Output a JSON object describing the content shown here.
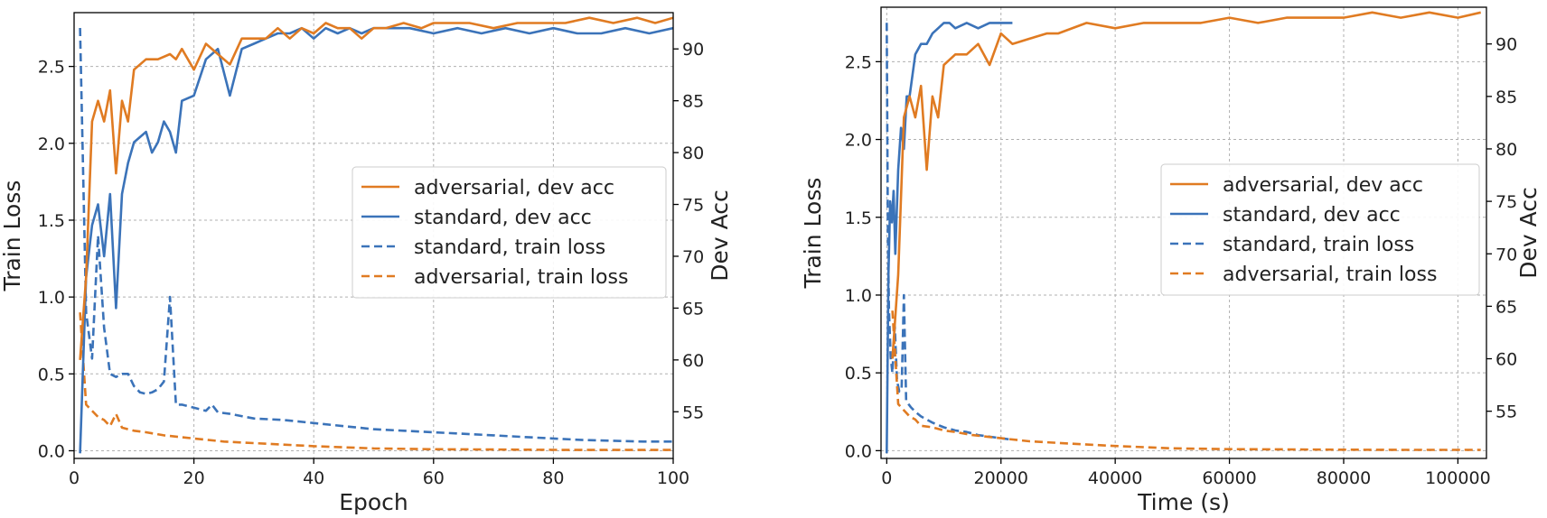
{
  "colors": {
    "adversarial": "#e07b22",
    "standard": "#3b73b9"
  },
  "chart_data": [
    {
      "type": "line",
      "xlabel": "Epoch",
      "ylabel_left": "Train Loss",
      "ylabel_right": "Dev Acc",
      "xlim": [
        0,
        100
      ],
      "ylim_left": [
        -0.05,
        2.85
      ],
      "ylim_right": [
        50.5,
        93.5
      ],
      "xticks": [
        "0",
        "20",
        "40",
        "60",
        "80",
        "100"
      ],
      "yticks_left": [
        "0.0",
        "0.5",
        "1.0",
        "1.5",
        "2.0",
        "2.5"
      ],
      "yticks_right": [
        "55",
        "60",
        "65",
        "70",
        "75",
        "80",
        "85",
        "90"
      ],
      "grid": true,
      "legend_position": "center-right",
      "legend": [
        "adversarial, dev acc",
        "standard, dev acc",
        "standard, train loss",
        "adversarial, train loss"
      ],
      "series": [
        {
          "name": "adversarial, dev acc",
          "axis": "right",
          "style": "solid",
          "color": "adversarial",
          "x": [
            1,
            2,
            3,
            4,
            5,
            6,
            7,
            8,
            9,
            10,
            12,
            14,
            16,
            17,
            18,
            20,
            22,
            24,
            26,
            28,
            30,
            32,
            34,
            36,
            38,
            40,
            42,
            44,
            46,
            48,
            50,
            52,
            55,
            58,
            60,
            63,
            66,
            70,
            74,
            78,
            82,
            86,
            90,
            94,
            97,
            100
          ],
          "y": [
            60,
            68,
            83,
            85,
            83,
            86,
            78,
            85,
            83,
            88,
            89,
            89,
            89.5,
            89,
            90,
            88,
            90.5,
            89.5,
            88.5,
            91,
            91,
            91,
            92,
            91,
            92,
            91.5,
            92.5,
            92,
            92,
            91,
            92,
            92,
            92.5,
            92,
            92.5,
            92.5,
            92.5,
            92,
            92.5,
            92.5,
            92.5,
            93,
            92.5,
            93,
            92.5,
            93
          ]
        },
        {
          "name": "standard, dev acc",
          "axis": "right",
          "style": "solid",
          "color": "standard",
          "x": [
            1,
            2,
            3,
            4,
            5,
            6,
            7,
            8,
            9,
            10,
            12,
            13,
            14,
            15,
            16,
            17,
            18,
            20,
            22,
            24,
            26,
            28,
            30,
            32,
            34,
            36,
            38,
            40,
            42,
            44,
            46,
            48,
            50,
            53,
            56,
            60,
            64,
            68,
            72,
            76,
            80,
            84,
            88,
            92,
            96,
            100
          ],
          "y": [
            51,
            68,
            73,
            75,
            70,
            76,
            65,
            76,
            79,
            81,
            82,
            80,
            81,
            83,
            82,
            80,
            85,
            85.5,
            89,
            90,
            85.5,
            90,
            90.5,
            91,
            91.5,
            91.5,
            92,
            91,
            92,
            91.5,
            92,
            91.5,
            92,
            92,
            92,
            91.5,
            92,
            91.5,
            92,
            91.5,
            92,
            91.5,
            91.5,
            92,
            91.5,
            92
          ]
        },
        {
          "name": "standard, train loss",
          "axis": "left",
          "style": "dashed",
          "color": "standard",
          "x": [
            1,
            2,
            3,
            4,
            5,
            6,
            7,
            8,
            9,
            10,
            11,
            12,
            13,
            14,
            15,
            16,
            17,
            18,
            20,
            22,
            23,
            24,
            26,
            30,
            35,
            40,
            45,
            50,
            55,
            60,
            65,
            70,
            75,
            80,
            85,
            90,
            95,
            100
          ],
          "y": [
            2.75,
            0.9,
            0.6,
            1.4,
            0.8,
            0.5,
            0.48,
            0.5,
            0.5,
            0.42,
            0.38,
            0.37,
            0.38,
            0.4,
            0.45,
            1.0,
            0.3,
            0.3,
            0.28,
            0.26,
            0.3,
            0.25,
            0.24,
            0.21,
            0.2,
            0.18,
            0.16,
            0.14,
            0.13,
            0.12,
            0.11,
            0.1,
            0.09,
            0.08,
            0.07,
            0.065,
            0.06,
            0.06
          ]
        },
        {
          "name": "adversarial, train loss",
          "axis": "left",
          "style": "dashed",
          "color": "adversarial",
          "x": [
            1,
            2,
            3,
            4,
            5,
            6,
            7,
            8,
            10,
            12,
            15,
            20,
            25,
            30,
            40,
            50,
            60,
            70,
            80,
            90,
            100
          ],
          "y": [
            0.9,
            0.3,
            0.26,
            0.22,
            0.2,
            0.16,
            0.24,
            0.15,
            0.13,
            0.12,
            0.1,
            0.08,
            0.06,
            0.05,
            0.03,
            0.015,
            0.01,
            0.008,
            0.006,
            0.005,
            0.005
          ]
        }
      ]
    },
    {
      "type": "line",
      "xlabel": "Time (s)",
      "ylabel_left": "Train Loss",
      "ylabel_right": "Dev Acc",
      "xlim": [
        -1000,
        105000
      ],
      "ylim_left": [
        -0.05,
        2.85
      ],
      "ylim_right": [
        50.5,
        93.5
      ],
      "xticks": [
        "0",
        "20000",
        "40000",
        "60000",
        "80000",
        "100000"
      ],
      "yticks_left": [
        "0.0",
        "0.5",
        "1.0",
        "1.5",
        "2.0",
        "2.5"
      ],
      "yticks_right": [
        "55",
        "60",
        "65",
        "70",
        "75",
        "80",
        "85",
        "90"
      ],
      "grid": true,
      "legend_position": "center-right",
      "legend": [
        "adversarial, dev acc",
        "standard, dev acc",
        "standard, train loss",
        "adversarial, train loss"
      ],
      "series": [
        {
          "name": "adversarial, dev acc",
          "axis": "right",
          "style": "solid",
          "color": "adversarial",
          "x": [
            1000,
            2000,
            3000,
            4000,
            5000,
            6000,
            7000,
            8000,
            9000,
            10000,
            12000,
            14000,
            16000,
            18000,
            20000,
            22000,
            25000,
            28000,
            30000,
            35000,
            40000,
            45000,
            50000,
            55000,
            60000,
            65000,
            70000,
            75000,
            80000,
            85000,
            90000,
            95000,
            100000,
            104000
          ],
          "y": [
            60,
            68,
            83,
            85,
            83,
            86,
            78,
            85,
            83,
            88,
            89,
            89,
            90,
            88,
            91,
            90,
            90.5,
            91,
            91,
            92,
            91.5,
            92,
            92,
            92,
            92.5,
            92,
            92.5,
            92.5,
            92.5,
            93,
            92.5,
            93,
            92.5,
            93
          ]
        },
        {
          "name": "standard, dev acc",
          "axis": "right",
          "style": "solid",
          "color": "standard",
          "x": [
            0,
            300,
            600,
            900,
            1200,
            1500,
            2000,
            2500,
            3000,
            3500,
            4000,
            5000,
            6000,
            7000,
            8000,
            9000,
            10000,
            11000,
            12000,
            14000,
            16000,
            18000,
            20000,
            22000
          ],
          "y": [
            51,
            68,
            75,
            73,
            76,
            70,
            78,
            82,
            80,
            85,
            85,
            89,
            90,
            90,
            91,
            91.5,
            92,
            92,
            91.5,
            92,
            91.5,
            92,
            92,
            92
          ]
        },
        {
          "name": "standard, train loss",
          "axis": "left",
          "style": "dashed",
          "color": "standard",
          "x": [
            0,
            200,
            400,
            700,
            1000,
            1400,
            1800,
            2200,
            2600,
            3000,
            3400,
            3800,
            4200,
            5000,
            6000,
            7000,
            8000,
            10000,
            12000,
            14000,
            16000,
            18000,
            20000,
            22000
          ],
          "y": [
            2.75,
            1.4,
            0.9,
            0.6,
            0.5,
            0.8,
            0.45,
            0.38,
            0.4,
            1.0,
            0.32,
            0.3,
            0.28,
            0.25,
            0.22,
            0.2,
            0.18,
            0.15,
            0.13,
            0.12,
            0.1,
            0.09,
            0.08,
            0.07
          ]
        },
        {
          "name": "adversarial, train loss",
          "axis": "left",
          "style": "dashed",
          "color": "adversarial",
          "x": [
            1000,
            2000,
            3000,
            4000,
            5000,
            6000,
            8000,
            10000,
            12000,
            15000,
            20000,
            25000,
            30000,
            40000,
            50000,
            60000,
            70000,
            80000,
            90000,
            100000,
            104000
          ],
          "y": [
            0.9,
            0.3,
            0.26,
            0.22,
            0.2,
            0.16,
            0.15,
            0.13,
            0.12,
            0.1,
            0.08,
            0.06,
            0.05,
            0.03,
            0.015,
            0.01,
            0.008,
            0.006,
            0.005,
            0.005,
            0.005
          ]
        }
      ]
    }
  ]
}
